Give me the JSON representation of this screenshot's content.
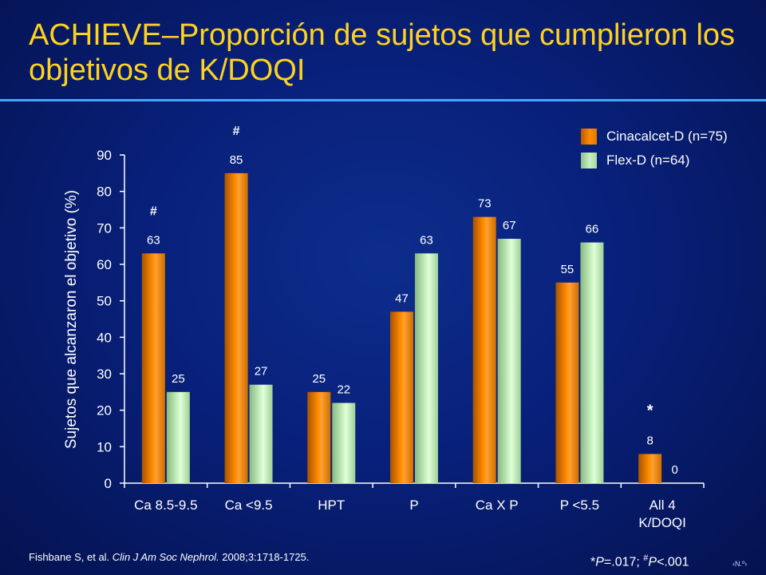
{
  "title": "ACHIEVE–Proporción de sujetos que cumplieron los objetivos de K/DOQI",
  "colors": {
    "title": "#ffd21f",
    "rule": "#4aa3ff",
    "series1": "#ff8c00",
    "series2": "#c8f0c0"
  },
  "chart_data": {
    "type": "bar",
    "ylabel": "Sujetos que alcanzaron el objetivo (%)",
    "ylim": [
      0,
      90
    ],
    "yticks": [
      0,
      10,
      20,
      30,
      40,
      50,
      60,
      70,
      80,
      90
    ],
    "categories": [
      [
        "Ca 8.5-9.5"
      ],
      [
        "Ca <9.5"
      ],
      [
        "HPT"
      ],
      [
        "P"
      ],
      [
        "Ca X P"
      ],
      [
        "P <5.5"
      ],
      [
        "All 4",
        "K/DOQI"
      ]
    ],
    "series": [
      {
        "name": "Cinacalcet-D (n=75)",
        "values": [
          63,
          85,
          25,
          47,
          73,
          55,
          8
        ]
      },
      {
        "name": "Flex-D (n=64)",
        "values": [
          25,
          27,
          22,
          63,
          67,
          66,
          0
        ]
      }
    ],
    "annotations": [
      {
        "category": 0,
        "series": 0,
        "text": "#"
      },
      {
        "category": 1,
        "series": 0,
        "text": "#"
      },
      {
        "category": 6,
        "series": 0,
        "text": "*"
      }
    ],
    "legend_position": "top-right",
    "grid": false
  },
  "footer": {
    "citation_authors": "Fishbane S, et al. ",
    "citation_journal": "Clin J Am Soc Nephrol.",
    "citation_ref": " 2008;3:1718-1725.",
    "p_star": "*",
    "p_label1": "P",
    "p_value1": "=.017; ",
    "p_hash": "#",
    "p_label2": "P",
    "p_value2": "<.001"
  },
  "slide_number": "‹N.º›"
}
